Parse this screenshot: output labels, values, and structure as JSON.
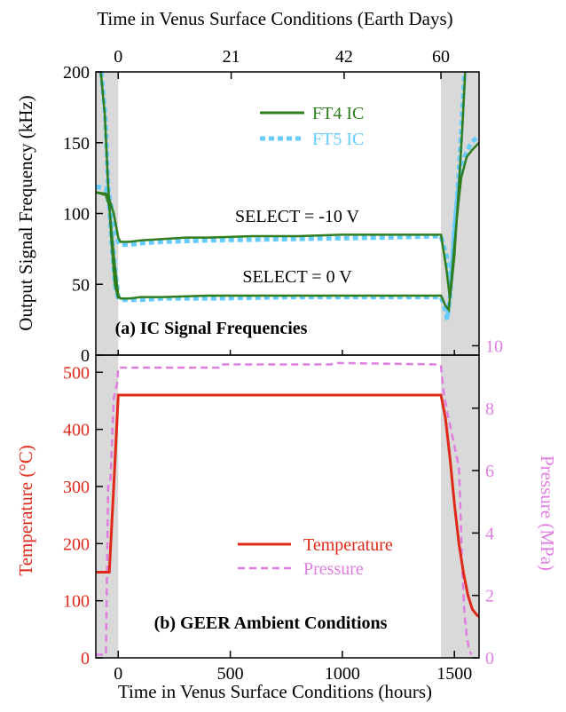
{
  "top_axis_label": "Time in Venus Surface Conditions (Earth Days)",
  "bottom_axis_label": "Time in Venus Surface Conditions (hours)",
  "colors": {
    "ft4": "#2e7d1e",
    "ft5": "#66ccff",
    "temperature": "#e02818",
    "pressure": "#e07ee0",
    "shade": "#d9d9d9"
  },
  "chart_data": [
    {
      "type": "line",
      "panel_label": "(a) IC Signal Frequencies",
      "xlabel": "Time in Venus Surface Conditions (hours)",
      "ylabel": "Output Signal Frequency (kHz)",
      "xlim": [
        -100,
        1610
      ],
      "ylim": [
        0,
        200
      ],
      "yticks": [
        0,
        50,
        100,
        150,
        200
      ],
      "top_axis": {
        "label": "Time in Venus Surface Conditions (Earth Days)",
        "ticks": [
          0,
          21,
          42,
          60
        ],
        "tick_hours": [
          0,
          504,
          1008,
          1440
        ]
      },
      "shaded_x_ranges": [
        [
          -100,
          0
        ],
        [
          1440,
          1610
        ]
      ],
      "legend": {
        "position": "top-right",
        "entries": [
          "FT4 IC",
          "FT5 IC"
        ]
      },
      "annotations": [
        "SELECT = -10 V",
        "SELECT = 0 V"
      ],
      "grid": false,
      "series": [
        {
          "name": "FT4 IC",
          "style": "solid",
          "segments": [
            [
              [
                -100,
                115
              ],
              [
                -55,
                114
              ],
              [
                -40,
                110
              ],
              [
                -20,
                100
              ],
              [
                0,
                83
              ],
              [
                10,
                80
              ],
              [
                50,
                80
              ],
              [
                100,
                81
              ],
              [
                200,
                82
              ],
              [
                300,
                83
              ],
              [
                400,
                83
              ],
              [
                600,
                84
              ],
              [
                800,
                84
              ],
              [
                1000,
                85
              ],
              [
                1200,
                85
              ],
              [
                1400,
                85
              ],
              [
                1440,
                85
              ],
              [
                1465,
                60
              ],
              [
                1480,
                40
              ],
              [
                1500,
                70
              ],
              [
                1520,
                120
              ],
              [
                1535,
                160
              ],
              [
                1548,
                200
              ]
            ],
            [
              [
                -100,
                115
              ],
              [
                -55,
                113
              ],
              [
                -40,
                105
              ],
              [
                -20,
                70
              ],
              [
                0,
                42
              ],
              [
                10,
                40
              ],
              [
                50,
                40
              ],
              [
                100,
                41
              ],
              [
                200,
                41
              ],
              [
                400,
                42
              ],
              [
                800,
                42
              ],
              [
                1200,
                42
              ],
              [
                1440,
                42
              ],
              [
                1460,
                35
              ],
              [
                1475,
                32
              ],
              [
                1490,
                60
              ],
              [
                1510,
                95
              ],
              [
                1530,
                125
              ],
              [
                1555,
                140
              ],
              [
                1580,
                145
              ],
              [
                1610,
                150
              ]
            ],
            [
              [
                -78,
                200
              ],
              [
                -60,
                170
              ],
              [
                -45,
                120
              ],
              [
                -30,
                80
              ],
              [
                -15,
                50
              ],
              [
                0,
                40
              ]
            ]
          ]
        },
        {
          "name": "FT5 IC",
          "style": "dashed",
          "segments": [
            [
              [
                -100,
                119
              ],
              [
                -55,
                118
              ],
              [
                -40,
                112
              ],
              [
                -20,
                95
              ],
              [
                0,
                80
              ],
              [
                10,
                78
              ],
              [
                50,
                78
              ],
              [
                100,
                79
              ],
              [
                200,
                80
              ],
              [
                400,
                81
              ],
              [
                800,
                82
              ],
              [
                1200,
                83
              ],
              [
                1440,
                84
              ],
              [
                1465,
                70
              ],
              [
                1480,
                45
              ],
              [
                1500,
                85
              ],
              [
                1520,
                130
              ],
              [
                1545,
                200
              ]
            ],
            [
              [
                -100,
                119
              ],
              [
                -55,
                117
              ],
              [
                -40,
                105
              ],
              [
                -20,
                70
              ],
              [
                0,
                41
              ],
              [
                10,
                39
              ],
              [
                50,
                39
              ],
              [
                100,
                39
              ],
              [
                200,
                40
              ],
              [
                400,
                40
              ],
              [
                800,
                41
              ],
              [
                1200,
                41
              ],
              [
                1440,
                41
              ],
              [
                1455,
                35
              ],
              [
                1468,
                25
              ],
              [
                1480,
                40
              ],
              [
                1500,
                90
              ],
              [
                1520,
                120
              ],
              [
                1545,
                140
              ],
              [
                1575,
                150
              ],
              [
                1610,
                155
              ]
            ],
            [
              [
                -76,
                200
              ],
              [
                -58,
                170
              ],
              [
                -45,
                120
              ],
              [
                -30,
                80
              ],
              [
                -15,
                50
              ],
              [
                0,
                40
              ]
            ]
          ]
        }
      ]
    },
    {
      "type": "line",
      "panel_label": "(b) GEER Ambient Conditions",
      "xlabel": "Time in Venus Surface Conditions (hours)",
      "ylabel": "Temperature (°C)",
      "y2label": "Pressure (MPa)",
      "xlim": [
        -100,
        1610
      ],
      "xticks": [
        0,
        500,
        1000,
        1500
      ],
      "ylim": [
        0,
        530
      ],
      "yticks": [
        0,
        100,
        200,
        300,
        400,
        500
      ],
      "y2lim": [
        0,
        9.7
      ],
      "y2ticks": [
        0,
        2,
        4,
        6,
        8,
        10
      ],
      "shaded_x_ranges": [
        [
          -100,
          0
        ],
        [
          1440,
          1610
        ]
      ],
      "legend": {
        "position": "bottom-right",
        "entries": [
          "Temperature",
          "Pressure"
        ]
      },
      "grid": false,
      "series": [
        {
          "name": "Temperature",
          "axis": "left",
          "style": "solid",
          "points": [
            [
              -100,
              150
            ],
            [
              -40,
              150
            ],
            [
              -20,
              300
            ],
            [
              0,
              460
            ],
            [
              1440,
              460
            ],
            [
              1460,
              420
            ],
            [
              1480,
              350
            ],
            [
              1500,
              270
            ],
            [
              1520,
              200
            ],
            [
              1540,
              150
            ],
            [
              1560,
              110
            ],
            [
              1580,
              85
            ],
            [
              1600,
              75
            ],
            [
              1610,
              72
            ]
          ]
        },
        {
          "name": "Pressure",
          "axis": "right",
          "style": "dashed",
          "points": [
            [
              -100,
              0.1
            ],
            [
              -55,
              0.1
            ],
            [
              -45,
              5.5
            ],
            [
              -35,
              5.6
            ],
            [
              -20,
              8.3
            ],
            [
              -5,
              8.8
            ],
            [
              0,
              9.3
            ],
            [
              450,
              9.3
            ],
            [
              460,
              9.4
            ],
            [
              950,
              9.4
            ],
            [
              960,
              9.45
            ],
            [
              1430,
              9.4
            ],
            [
              1440,
              9.35
            ],
            [
              1450,
              8.6
            ],
            [
              1470,
              7.8
            ],
            [
              1500,
              6.8
            ],
            [
              1520,
              6.1
            ],
            [
              1525,
              5.2
            ],
            [
              1535,
              2.8
            ],
            [
              1545,
              1.4
            ],
            [
              1555,
              0.7
            ],
            [
              1565,
              0.3
            ],
            [
              1575,
              0.1
            ]
          ]
        }
      ]
    }
  ]
}
